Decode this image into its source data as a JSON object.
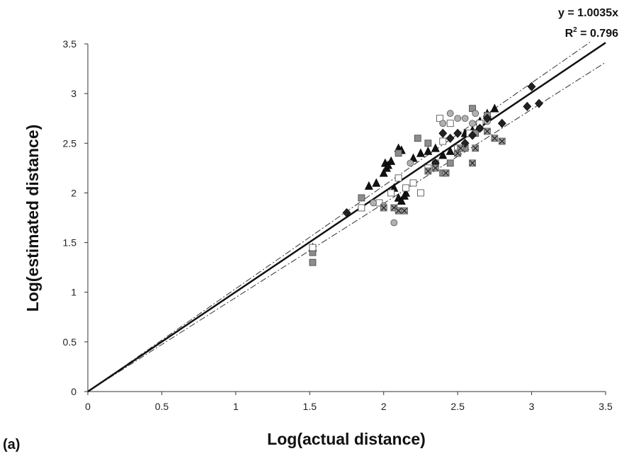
{
  "chart_data": {
    "type": "scatter",
    "xlabel": "Log(actual distance)",
    "ylabel": "Log(estimated distance)",
    "panel_label": "(a)",
    "equation": "y = 1.0035x",
    "r_squared_prefix": "R",
    "r_squared_exp": "2",
    "r_squared_value": " = 0.796",
    "xlim": [
      0,
      3.5
    ],
    "ylim": [
      0,
      3.5
    ],
    "x_ticks": [
      "0",
      "0.5",
      "1",
      "1.5",
      "2",
      "2.5",
      "3",
      "3.5"
    ],
    "y_ticks": [
      "0",
      "0.5",
      "1",
      "1.5",
      "2",
      "2.5",
      "3",
      "3.5"
    ],
    "grid": false,
    "trendline": {
      "slope": 1.0035,
      "x_range": [
        0,
        3.5
      ]
    },
    "band_lines": [
      {
        "slope": 1.036,
        "x_range": [
          0,
          3.4
        ]
      },
      {
        "slope": 0.947,
        "x_range": [
          0,
          3.5
        ]
      }
    ],
    "series": [
      {
        "marker": "triangle",
        "fill": "#111111",
        "points": [
          [
            1.52,
            1.45
          ],
          [
            1.9,
            2.07
          ],
          [
            1.95,
            2.1
          ],
          [
            2.0,
            2.2
          ],
          [
            2.01,
            2.3
          ],
          [
            2.02,
            2.25
          ],
          [
            2.03,
            2.28
          ],
          [
            2.05,
            2.32
          ],
          [
            2.07,
            2.05
          ],
          [
            2.1,
            2.45
          ],
          [
            2.12,
            2.43
          ],
          [
            2.15,
            2.0
          ],
          [
            2.2,
            2.35
          ],
          [
            2.25,
            2.4
          ],
          [
            2.3,
            2.42
          ],
          [
            2.35,
            2.45
          ],
          [
            2.4,
            2.38
          ],
          [
            2.45,
            2.42
          ],
          [
            2.55,
            2.6
          ],
          [
            2.6,
            2.63
          ],
          [
            2.65,
            2.72
          ],
          [
            2.7,
            2.8
          ],
          [
            2.75,
            2.85
          ],
          [
            2.1,
            1.95
          ],
          [
            2.12,
            1.92
          ],
          [
            2.14,
            1.97
          ]
        ]
      },
      {
        "marker": "square",
        "fill": "#8c8c8c",
        "points": [
          [
            1.52,
            1.3
          ],
          [
            1.52,
            1.4
          ],
          [
            1.85,
            1.95
          ],
          [
            2.1,
            2.4
          ],
          [
            2.23,
            2.55
          ],
          [
            2.3,
            2.5
          ],
          [
            2.35,
            2.3
          ],
          [
            2.4,
            2.2
          ],
          [
            2.45,
            2.3
          ],
          [
            2.5,
            2.4
          ],
          [
            2.55,
            2.45
          ],
          [
            2.6,
            2.85
          ],
          [
            2.62,
            2.6
          ],
          [
            2.7,
            2.78
          ]
        ]
      },
      {
        "marker": "square",
        "fill": "#ffffff",
        "points": [
          [
            1.52,
            1.45
          ],
          [
            1.85,
            1.85
          ],
          [
            1.97,
            1.9
          ],
          [
            2.05,
            2.0
          ],
          [
            2.1,
            2.15
          ],
          [
            2.15,
            2.05
          ],
          [
            2.2,
            2.1
          ],
          [
            2.25,
            2.0
          ],
          [
            2.3,
            2.25
          ],
          [
            2.38,
            2.75
          ],
          [
            2.4,
            2.52
          ],
          [
            2.42,
            2.2
          ],
          [
            2.45,
            2.7
          ],
          [
            2.5,
            2.45
          ],
          [
            2.58,
            2.6
          ],
          [
            2.65,
            2.7
          ]
        ]
      },
      {
        "marker": "circle",
        "fill": "#b0b0b0",
        "points": [
          [
            1.93,
            1.9
          ],
          [
            2.0,
            1.87
          ],
          [
            2.07,
            1.7
          ],
          [
            2.18,
            2.3
          ],
          [
            2.4,
            2.7
          ],
          [
            2.45,
            2.8
          ],
          [
            2.5,
            2.75
          ],
          [
            2.55,
            2.75
          ],
          [
            2.6,
            2.7
          ],
          [
            2.62,
            2.8
          ],
          [
            2.65,
            2.65
          ],
          [
            2.7,
            2.72
          ]
        ]
      },
      {
        "marker": "diamond",
        "fill": "#222222",
        "points": [
          [
            1.75,
            1.8
          ],
          [
            2.35,
            2.3
          ],
          [
            2.4,
            2.6
          ],
          [
            2.45,
            2.55
          ],
          [
            2.5,
            2.6
          ],
          [
            2.55,
            2.5
          ],
          [
            2.6,
            2.58
          ],
          [
            2.65,
            2.65
          ],
          [
            2.7,
            2.75
          ],
          [
            2.8,
            2.7
          ],
          [
            2.97,
            2.87
          ],
          [
            3.0,
            3.07
          ],
          [
            3.05,
            2.9
          ]
        ]
      },
      {
        "marker": "x-square",
        "fill": "#9a9a9a",
        "points": [
          [
            2.0,
            1.85
          ],
          [
            2.07,
            1.85
          ],
          [
            2.1,
            1.82
          ],
          [
            2.14,
            1.82
          ],
          [
            2.3,
            2.22
          ],
          [
            2.35,
            2.25
          ],
          [
            2.42,
            2.2
          ],
          [
            2.5,
            2.4
          ],
          [
            2.52,
            2.45
          ],
          [
            2.6,
            2.3
          ],
          [
            2.62,
            2.45
          ],
          [
            2.7,
            2.62
          ],
          [
            2.75,
            2.55
          ],
          [
            2.8,
            2.52
          ]
        ]
      }
    ]
  }
}
